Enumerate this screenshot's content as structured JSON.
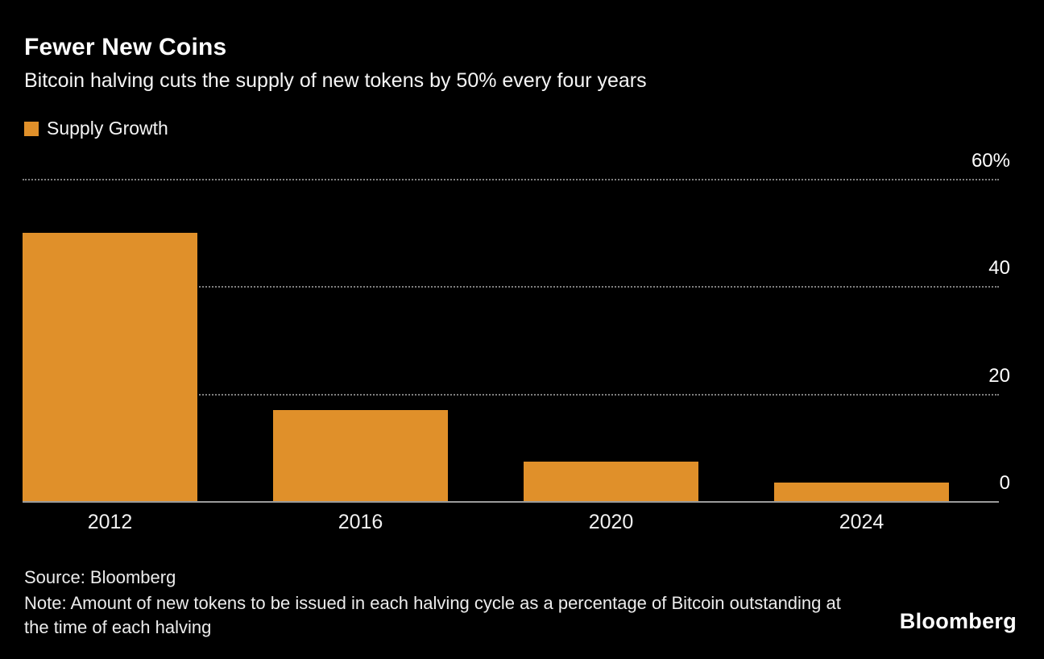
{
  "header": {
    "title": "Fewer New Coins",
    "subtitle": "Bitcoin halving cuts the supply of new tokens by 50% every four years"
  },
  "legend": {
    "label": "Supply Growth",
    "swatch_color": "#E0902A"
  },
  "chart_data": {
    "type": "bar",
    "categories": [
      "2012",
      "2016",
      "2020",
      "2024"
    ],
    "values": [
      50,
      17,
      7.4,
      3.4
    ],
    "series": [
      {
        "name": "Supply Growth",
        "values": [
          50,
          17,
          7.4,
          3.4
        ]
      }
    ],
    "title": "Fewer New Coins",
    "subtitle": "Bitcoin halving cuts the supply of new tokens by 50% every four years",
    "xlabel": "",
    "ylabel": "",
    "ylim": [
      0,
      60
    ],
    "yticks": [
      {
        "value": 60,
        "label": "60%"
      },
      {
        "value": 40,
        "label": "40"
      },
      {
        "value": 20,
        "label": "20"
      },
      {
        "value": 0,
        "label": "0"
      }
    ],
    "bar_color": "#E0902A",
    "grid": "horizontal-dotted",
    "grid_color": "#7F7F7F",
    "axis_color": "#9B9B9B",
    "background_color": "#000000",
    "legend_position": "top-left",
    "ytick_position": "right"
  },
  "footer": {
    "source": "Source: Bloomberg",
    "note": "Note: Amount of new tokens to be issued in each halving cycle as a percentage of Bitcoin outstanding at the time of each halving",
    "brand": "Bloomberg"
  }
}
